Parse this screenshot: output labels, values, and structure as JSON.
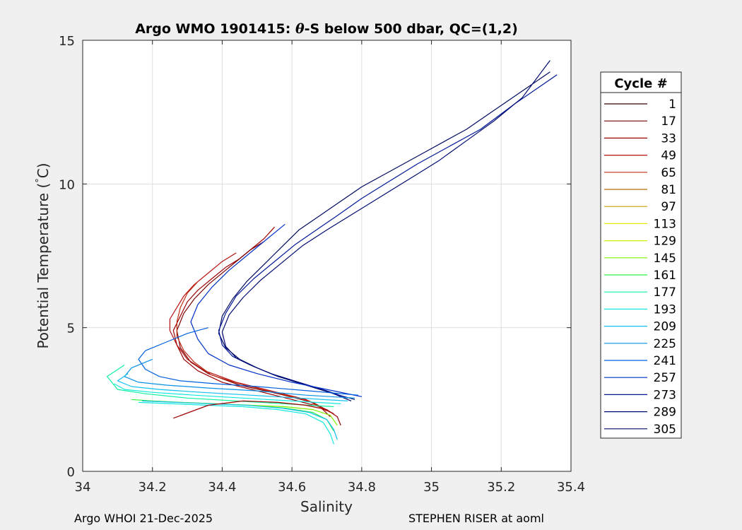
{
  "chart_data": {
    "type": "line",
    "title": "Argo WMO 1901415: θ-S below 500 dbar,  QC=(1,2)",
    "title_parts": {
      "prefix": "Argo WMO 1901415: ",
      "theta": "θ",
      "suffix": "-S below 500 dbar,  QC=(1,2)"
    },
    "xlabel": "Salinity",
    "ylabel": "Potential Temperature ( °C)",
    "ylabel_parts": {
      "main": "Potential Temperature (",
      "deg": "°",
      "unit": "C)"
    },
    "xlim": [
      34,
      35.4
    ],
    "ylim": [
      0,
      15
    ],
    "xticks": [
      34,
      34.2,
      34.4,
      34.6,
      34.8,
      35,
      35.2,
      35.4
    ],
    "xtick_labels": [
      "34",
      "34.2",
      "34.4",
      "34.6",
      "34.8",
      "35",
      "35.2",
      "35.4"
    ],
    "yticks": [
      0,
      5,
      10,
      15
    ],
    "ytick_labels": [
      "0",
      "5",
      "10",
      "15"
    ],
    "grid": true,
    "legend": {
      "title": "Cycle #",
      "placement": "outside-right",
      "entries": [
        {
          "label": "1",
          "color": "#3a0000"
        },
        {
          "label": "17",
          "color": "#7a0000"
        },
        {
          "label": "33",
          "color": "#9c0000"
        },
        {
          "label": "49",
          "color": "#b51010"
        },
        {
          "label": "65",
          "color": "#c03018"
        },
        {
          "label": "81",
          "color": "#b86a00"
        },
        {
          "label": "97",
          "color": "#c8a000"
        },
        {
          "label": "113",
          "color": "#e8e800"
        },
        {
          "label": "129",
          "color": "#c8f000"
        },
        {
          "label": "145",
          "color": "#80f000"
        },
        {
          "label": "161",
          "color": "#30f040"
        },
        {
          "label": "177",
          "color": "#10f0a0"
        },
        {
          "label": "193",
          "color": "#10e8e0"
        },
        {
          "label": "209",
          "color": "#10c0f0"
        },
        {
          "label": "225",
          "color": "#0890e8"
        },
        {
          "label": "241",
          "color": "#0060e0"
        },
        {
          "label": "257",
          "color": "#0030c8"
        },
        {
          "label": "273",
          "color": "#001898"
        },
        {
          "label": "289",
          "color": "#000a70"
        },
        {
          "label": "305",
          "color": "#000a60"
        }
      ]
    },
    "series": [
      {
        "color": "#9c0000",
        "x": [
          34.71,
          34.68,
          34.6,
          34.5,
          34.4,
          34.33,
          34.29,
          34.27,
          34.26,
          34.28,
          34.3,
          34.33,
          34.37,
          34.41,
          34.45,
          34.48,
          34.52,
          34.55
        ],
        "y": [
          1.9,
          2.25,
          2.5,
          2.8,
          3.1,
          3.5,
          3.9,
          4.4,
          4.9,
          5.4,
          5.9,
          6.3,
          6.7,
          7.1,
          7.4,
          7.7,
          8.1,
          8.5
        ]
      },
      {
        "color": "#7a0000",
        "x": [
          34.72,
          34.66,
          34.56,
          34.45,
          34.36,
          34.31,
          34.28,
          34.27,
          34.29,
          34.32,
          34.36,
          34.4,
          34.44,
          34.48,
          34.52
        ],
        "y": [
          2.0,
          2.4,
          2.7,
          3.0,
          3.4,
          3.8,
          4.3,
          4.9,
          5.5,
          6.0,
          6.5,
          6.9,
          7.3,
          7.7,
          8.0
        ]
      },
      {
        "color": "#b51010",
        "x": [
          34.7,
          34.64,
          34.54,
          34.44,
          34.35,
          34.3,
          34.27,
          34.25,
          34.25,
          34.27,
          34.29,
          34.32,
          34.36,
          34.4,
          34.44
        ],
        "y": [
          2.1,
          2.5,
          2.8,
          3.1,
          3.5,
          3.9,
          4.4,
          4.9,
          5.3,
          5.7,
          6.1,
          6.5,
          6.9,
          7.3,
          7.6
        ]
      },
      {
        "color": "#c03018",
        "x": [
          34.71,
          34.65,
          34.55,
          34.45,
          34.37,
          34.32,
          34.29,
          34.27,
          34.27,
          34.28,
          34.3,
          34.33
        ],
        "y": [
          2.05,
          2.45,
          2.75,
          3.05,
          3.35,
          3.8,
          4.2,
          4.7,
          5.2,
          5.7,
          6.2,
          6.6
        ]
      },
      {
        "color": "#000a60",
        "x": [
          34.78,
          34.72,
          34.64,
          34.56,
          34.5,
          34.45,
          34.41,
          34.39,
          34.4,
          34.43,
          34.47,
          34.52,
          34.57,
          34.62,
          34.68,
          34.74,
          34.8,
          34.86,
          34.92,
          34.98,
          35.04,
          35.1,
          35.16,
          35.22,
          35.28,
          35.34
        ],
        "y": [
          2.5,
          2.7,
          3.0,
          3.3,
          3.6,
          3.9,
          4.3,
          4.8,
          5.4,
          6.0,
          6.6,
          7.2,
          7.8,
          8.4,
          8.9,
          9.4,
          9.9,
          10.3,
          10.7,
          11.1,
          11.5,
          11.9,
          12.4,
          12.9,
          13.4,
          13.9
        ]
      },
      {
        "color": "#001898",
        "x": [
          34.76,
          34.7,
          34.62,
          34.54,
          34.48,
          34.43,
          34.4,
          34.39,
          34.41,
          34.44,
          34.49,
          34.55,
          34.61,
          34.67,
          34.73,
          34.8,
          34.88,
          34.96,
          35.05,
          35.14,
          35.24,
          35.36
        ],
        "y": [
          2.55,
          2.8,
          3.1,
          3.4,
          3.7,
          4.0,
          4.4,
          4.9,
          5.5,
          6.1,
          6.7,
          7.3,
          7.9,
          8.4,
          8.9,
          9.5,
          10.1,
          10.7,
          11.3,
          11.9,
          12.8,
          13.8
        ]
      },
      {
        "color": "#000a70",
        "x": [
          34.77,
          34.71,
          34.63,
          34.55,
          34.49,
          34.44,
          34.41,
          34.4,
          34.42,
          34.46,
          34.51,
          34.57,
          34.63,
          34.7,
          34.78,
          34.86,
          34.94,
          35.02,
          35.1,
          35.18,
          35.26,
          35.34
        ],
        "y": [
          2.45,
          2.75,
          3.05,
          3.35,
          3.65,
          3.95,
          4.35,
          4.85,
          5.45,
          6.05,
          6.65,
          7.25,
          7.85,
          8.4,
          9.0,
          9.6,
          10.2,
          10.8,
          11.5,
          12.2,
          13.0,
          14.3
        ]
      },
      {
        "color": "#0030c8",
        "x": [
          34.8,
          34.7,
          34.6,
          34.5,
          34.42,
          34.36,
          34.33,
          34.31,
          34.33,
          34.37,
          34.42,
          34.48,
          34.53,
          34.58
        ],
        "y": [
          2.6,
          2.85,
          3.1,
          3.4,
          3.7,
          4.1,
          4.6,
          5.2,
          5.8,
          6.4,
          7.0,
          7.6,
          8.1,
          8.6
        ]
      },
      {
        "color": "#0060e0",
        "x": [
          34.79,
          34.65,
          34.5,
          34.38,
          34.28,
          34.22,
          34.18,
          34.16,
          34.18,
          34.24,
          34.3,
          34.36
        ],
        "y": [
          2.65,
          2.8,
          2.95,
          3.05,
          3.15,
          3.3,
          3.55,
          3.9,
          4.2,
          4.5,
          4.8,
          5.0
        ]
      },
      {
        "color": "#0890e8",
        "x": [
          34.78,
          34.64,
          34.5,
          34.36,
          34.24,
          34.16,
          34.12,
          34.14,
          34.2
        ],
        "y": [
          2.55,
          2.65,
          2.8,
          2.9,
          3.0,
          3.1,
          3.3,
          3.6,
          3.9
        ]
      },
      {
        "color": "#10c0f0",
        "x": [
          34.76,
          34.62,
          34.48,
          34.34,
          34.22,
          34.14,
          34.1,
          34.13
        ],
        "y": [
          2.45,
          2.55,
          2.65,
          2.75,
          2.85,
          2.95,
          3.15,
          3.4
        ]
      },
      {
        "color": "#10e8e0",
        "x": [
          34.74,
          34.6,
          34.46,
          34.32,
          34.2,
          34.12,
          34.09
        ],
        "y": [
          2.35,
          2.45,
          2.55,
          2.65,
          2.75,
          2.85,
          3.05
        ]
      },
      {
        "color": "#10f0a0",
        "x": [
          34.72,
          34.58,
          34.44,
          34.3,
          34.18,
          34.1,
          34.07,
          34.12
        ],
        "y": [
          2.25,
          2.35,
          2.45,
          2.55,
          2.7,
          2.85,
          3.3,
          3.7
        ]
      },
      {
        "color": "#30f040",
        "x": [
          34.72,
          34.7,
          34.66,
          34.58,
          34.48,
          34.38,
          34.28,
          34.2,
          34.14
        ],
        "y": [
          1.4,
          1.8,
          2.05,
          2.2,
          2.3,
          2.35,
          2.4,
          2.45,
          2.5
        ]
      },
      {
        "color": "#80f000",
        "x": [
          34.73,
          34.71,
          34.66,
          34.58,
          34.48,
          34.38,
          34.28,
          34.18
        ],
        "y": [
          1.6,
          1.95,
          2.15,
          2.25,
          2.3,
          2.35,
          2.4,
          2.45
        ]
      },
      {
        "color": "#10e8e0",
        "x": [
          34.72,
          34.71,
          34.69,
          34.64,
          34.56,
          34.46,
          34.36,
          34.26,
          34.16
        ],
        "y": [
          0.95,
          1.3,
          1.7,
          2.0,
          2.15,
          2.25,
          2.3,
          2.35,
          2.4
        ]
      },
      {
        "color": "#10c0f0",
        "x": [
          34.73,
          34.72,
          34.7,
          34.65,
          34.57,
          34.47,
          34.37,
          34.27,
          34.17
        ],
        "y": [
          1.1,
          1.45,
          1.8,
          2.05,
          2.2,
          2.3,
          2.35,
          2.4,
          2.45
        ]
      },
      {
        "color": "#9c0000",
        "x": [
          34.74,
          34.73,
          34.7,
          34.64,
          34.56,
          34.46,
          34.36,
          34.26
        ],
        "y": [
          1.6,
          1.9,
          2.15,
          2.3,
          2.4,
          2.45,
          2.3,
          1.85
        ]
      }
    ]
  },
  "footer": {
    "left": "Argo WHOI 21-Dec-2025",
    "right": "STEPHEN RISER at aoml"
  }
}
